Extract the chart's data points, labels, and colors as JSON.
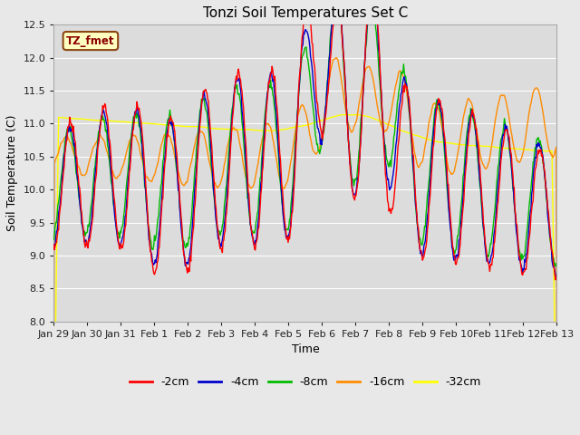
{
  "title": "Tonzi Soil Temperatures Set C",
  "xlabel": "Time",
  "ylabel": "Soil Temperature (C)",
  "ylim": [
    8.0,
    12.5
  ],
  "annotation_text": "TZ_fmet",
  "annotation_color": "#8B0000",
  "annotation_bg": "#FFFFC0",
  "annotation_border": "#8B4513",
  "legend_labels": [
    "-2cm",
    "-4cm",
    "-8cm",
    "-16cm",
    "-32cm"
  ],
  "line_colors": [
    "#FF0000",
    "#0000CC",
    "#00BB00",
    "#FF8C00",
    "#FFFF00"
  ],
  "background_color": "#E8E8E8",
  "plot_bg_color": "#DCDCDC",
  "grid_color": "#FFFFFF",
  "x_tick_labels": [
    "Jan 29",
    "Jan 30",
    "Jan 31",
    "Feb 1",
    "Feb 2",
    "Feb 3",
    "Feb 4",
    "Feb 5",
    "Feb 6",
    "Feb 7",
    "Feb 8",
    "Feb 9",
    "Feb 10",
    "Feb 11",
    "Feb 12",
    "Feb 13"
  ],
  "figsize": [
    6.4,
    4.8
  ],
  "dpi": 100
}
